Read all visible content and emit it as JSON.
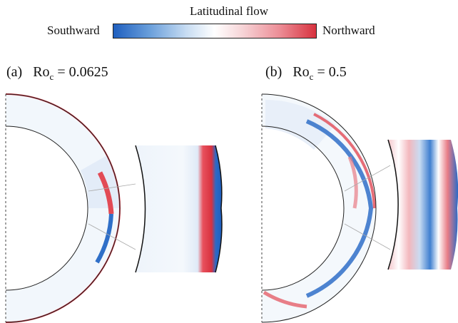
{
  "colorbar": {
    "title": "Latitudinal flow",
    "left_label": "Southward",
    "right_label": "Northward",
    "colors": {
      "negative": "#1f5fbf",
      "zero": "#ffffff",
      "positive": "#d8323f"
    }
  },
  "panels": [
    {
      "letter": "(a)",
      "param_base": "Ro",
      "param_sub": "c",
      "param_value": "= 0.0625"
    },
    {
      "letter": "(b)",
      "param_base": "Ro",
      "param_sub": "c",
      "param_value": "= 0.5"
    }
  ]
}
